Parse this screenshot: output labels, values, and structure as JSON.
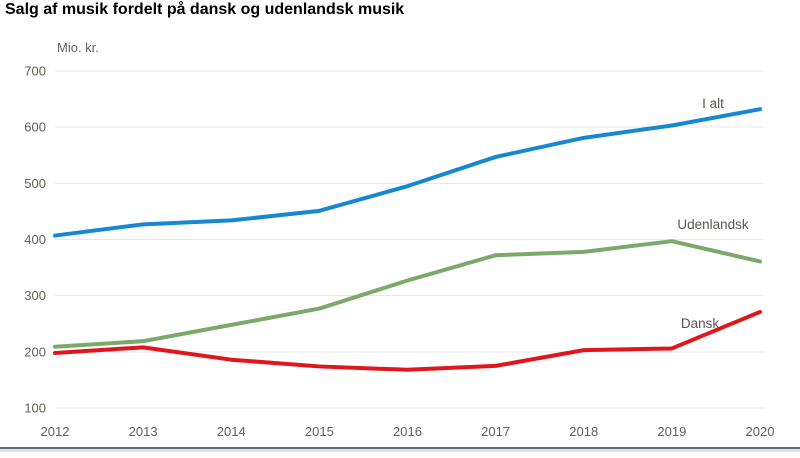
{
  "page": {
    "title": "Salg af musik fordelt på dansk og udenlandsk musik"
  },
  "chart_data": {
    "type": "line",
    "title": "Salg af musik fordelt på dansk og udenlandsk musik",
    "unit_label": "Mio. kr.",
    "x": [
      2012,
      2013,
      2014,
      2015,
      2016,
      2017,
      2018,
      2019,
      2020
    ],
    "y_ticks": [
      700,
      600,
      500,
      400,
      300,
      200,
      100
    ],
    "ylim": [
      100,
      700
    ],
    "grid": "horizontal-only",
    "legend_position": "inline-labels-right",
    "series": [
      {
        "name": "I alt",
        "color": "#1787d2",
        "values": [
          407,
          427,
          434,
          451,
          495,
          547,
          581,
          603,
          632
        ]
      },
      {
        "name": "Udenlandsk",
        "color": "#7aa96a",
        "values": [
          209,
          219,
          248,
          277,
          327,
          372,
          378,
          397,
          361
        ]
      },
      {
        "name": "Dansk",
        "color": "#e0161c",
        "values": [
          198,
          208,
          186,
          174,
          168,
          175,
          203,
          206,
          271
        ]
      }
    ]
  },
  "colors": {
    "grid_line": "#e7e7e7",
    "axis_text": "#635f56",
    "series_label_text": "#5a564f",
    "footer_bar_dark": "#56707d",
    "footer_bar_light": "#dce0e2"
  }
}
